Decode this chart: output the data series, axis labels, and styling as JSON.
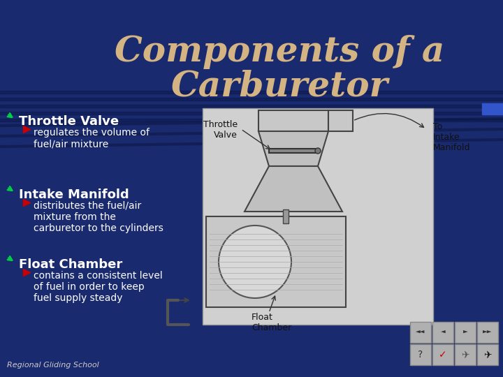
{
  "title_line1": "Components of a",
  "title_line2": "Carburetor",
  "title_color": "#D4B483",
  "bg_color": "#1a2a6e",
  "stripe_color": "#0d1a4a",
  "text_color": "#ffffff",
  "bullet_color": "#cc0000",
  "heading_color": "#ffffff",
  "arrow_color": "#00cc00",
  "diagram_bg": "#e8e8e8",
  "items": [
    {
      "heading": "Throttle Valve",
      "sub": "regulates the volume of\nfuel/air mixture"
    },
    {
      "heading": "Intake Manifold",
      "sub": "distributes the fuel/air\nmixture from the\ncarburetor to the cylinders"
    },
    {
      "heading": "Float Chamber",
      "sub": "contains a consistent level\nof fuel in order to keep\nfuel supply steady"
    }
  ],
  "diagram_labels": {
    "throttle_valve": "Throttle\nValve",
    "to_intake": "To\nIntake\nManifold",
    "float_chamber": "Float\nChamber"
  },
  "footer": "Regional Gliding School"
}
